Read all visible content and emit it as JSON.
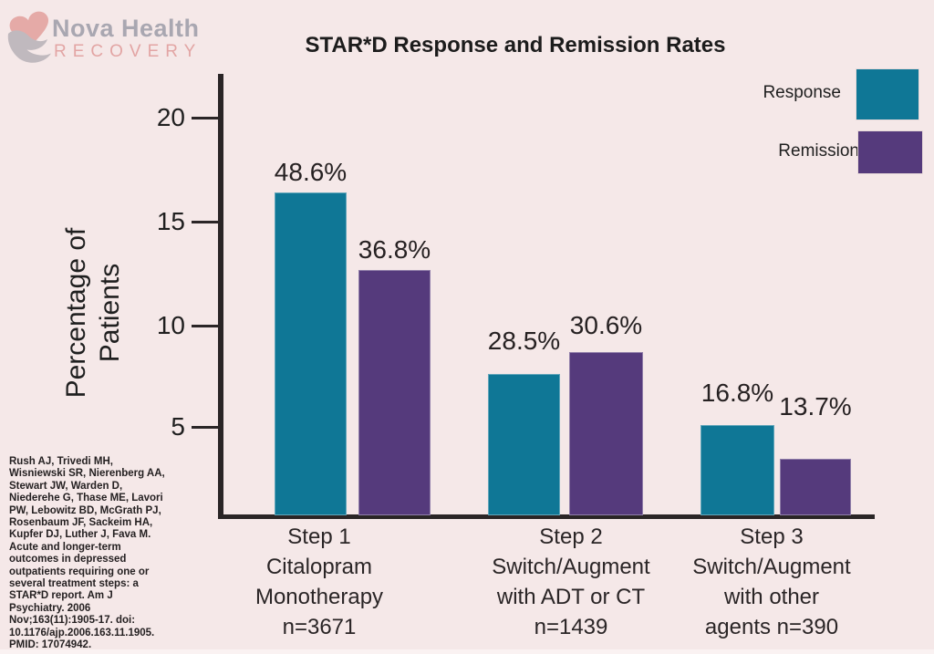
{
  "logo": {
    "title": "Nova Health",
    "subtitle": "RECOVERY",
    "icon": "heart-in-hand-icon",
    "title_color": "#9c9ca8",
    "subtitle_color": "#e2a2a1"
  },
  "background_color": "#f5e8e8",
  "chart_data": {
    "type": "bar",
    "title": "STAR*D Response and Remission Rates",
    "ylabel": "Percentage of\nPatients",
    "xlabel": "",
    "y_ticks": [
      20,
      15,
      10,
      5
    ],
    "ylim": [
      0,
      22
    ],
    "grid": false,
    "legend_position": "top-right",
    "legend": [
      {
        "label": "Response",
        "color": "#0f7796"
      },
      {
        "label": "Remission",
        "color": "#553a7c"
      }
    ],
    "categories": [
      "Step 1\nCitalopram\nMonotherapy\nn=3671",
      "Step 2\nSwitch/Augment\nwith ADT or CT\nn=1439",
      "Step 3\nSwitch/Augment\nwith other\nagents n=390"
    ],
    "series": [
      {
        "name": "Response",
        "values": [
          48.6,
          28.5,
          16.8
        ],
        "value_labels": [
          "48.6%",
          "28.5%",
          "16.8%"
        ]
      },
      {
        "name": "Remission",
        "values": [
          36.8,
          30.6,
          13.7
        ],
        "value_labels": [
          "36.8%",
          "30.6%",
          "13.7%"
        ]
      }
    ],
    "groups": [
      {
        "step": "Step 1",
        "treatment": "Citalopram Monotherapy",
        "n": 3671,
        "response_pct": 48.6,
        "remission_pct": 36.8
      },
      {
        "step": "Step 2",
        "treatment": "Switch/Augment with ADT or CT",
        "n": 1439,
        "response_pct": 28.5,
        "remission_pct": 30.6
      },
      {
        "step": "Step 3",
        "treatment": "Switch/Augment with other agents",
        "n": 390,
        "response_pct": 16.8,
        "remission_pct": 13.7
      }
    ]
  },
  "citation": {
    "text": "Rush AJ, Trivedi MH,\nWisniewski SR, Nierenberg AA,\nStewart JW, Warden D,\nNiederehe G, Thase ME, Lavori\nPW, Lebowitz BD, McGrath PJ,\nRosenbaum JF, Sackeim HA,\nKupfer DJ, Luther J, Fava M.\nAcute and longer-term\noutcomes in depressed\noutpatients requiring one or\nseveral treatment steps: a\nSTAR*D report. Am J\nPsychiatry. 2006\nNov;163(11):1905-17. doi:\n10.1176/ajp.2006.163.11.1905.\nPMID: 17074942."
  }
}
